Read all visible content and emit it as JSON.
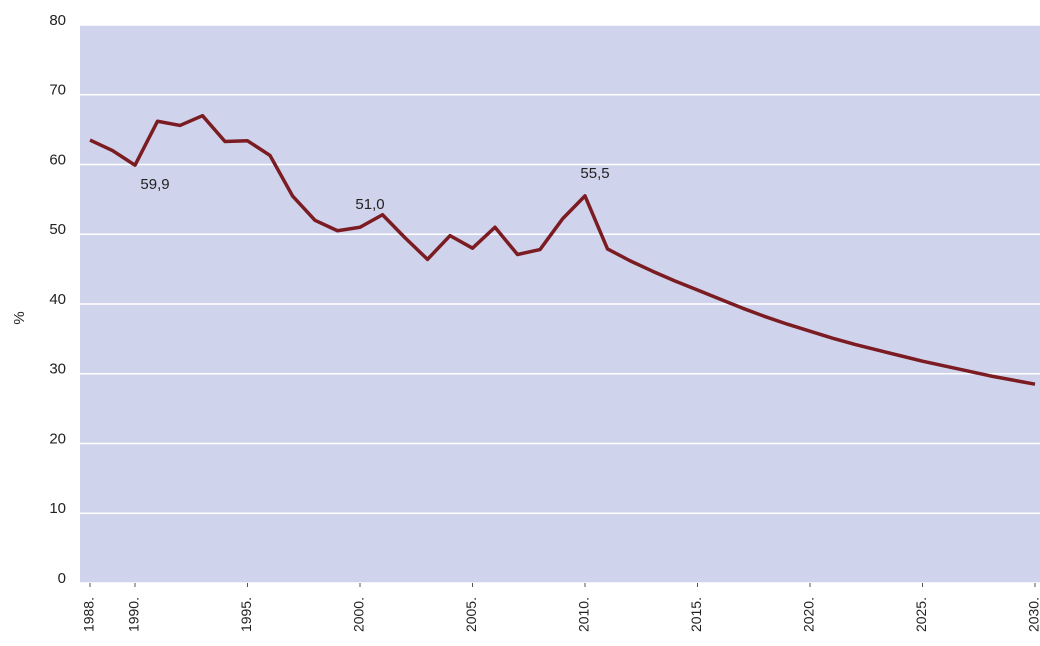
{
  "chart_data": {
    "type": "line",
    "y_label": "%",
    "x": [
      1988,
      1989,
      1990,
      1991,
      1992,
      1993,
      1994,
      1995,
      1996,
      1997,
      1998,
      1999,
      2000,
      2001,
      2002,
      2003,
      2004,
      2005,
      2006,
      2007,
      2008,
      2009,
      2010,
      2011,
      2012,
      2013,
      2014,
      2015,
      2016,
      2017,
      2018,
      2019,
      2020,
      2021,
      2022,
      2023,
      2024,
      2025,
      2026,
      2027,
      2028,
      2029,
      2030
    ],
    "values": [
      63.5,
      62.0,
      59.9,
      66.2,
      65.6,
      67.0,
      63.3,
      63.4,
      61.3,
      55.5,
      52.0,
      50.5,
      51.0,
      52.8,
      49.5,
      46.4,
      49.8,
      48.0,
      51.0,
      47.1,
      47.8,
      52.2,
      55.5,
      47.9,
      46.2,
      44.7,
      43.3,
      42.0,
      40.7,
      39.4,
      38.2,
      37.1,
      36.1,
      35.1,
      34.2,
      33.4,
      32.6,
      31.8,
      31.1,
      30.4,
      29.7,
      29.1,
      28.5
    ],
    "value_labels": [
      null,
      null,
      "59,9",
      null,
      null,
      null,
      null,
      null,
      null,
      null,
      null,
      null,
      "51,0",
      null,
      null,
      null,
      null,
      null,
      null,
      null,
      null,
      null,
      "55,5",
      null,
      null,
      null,
      null,
      null,
      null,
      null,
      null,
      null,
      null,
      null,
      null,
      null,
      null,
      null,
      null,
      null,
      null,
      null,
      null
    ],
    "color": "#7b1c22",
    "plot_color": "#d0d3ec",
    "xlim": [
      1988,
      2030
    ],
    "xticks": [
      {
        "value": 1988,
        "label": "1988."
      },
      {
        "value": 1990,
        "label": "1990."
      },
      {
        "value": 1995,
        "label": "1995."
      },
      {
        "value": 2000,
        "label": "2000."
      },
      {
        "value": 2005,
        "label": "2005."
      },
      {
        "value": 2010,
        "label": "2010."
      },
      {
        "value": 2015,
        "label": "2015."
      },
      {
        "value": 2020,
        "label": "2020."
      },
      {
        "value": 2025,
        "label": "2025."
      },
      {
        "value": 2030,
        "label": "2030."
      }
    ],
    "ylim": [
      0,
      80
    ],
    "yticks": [
      0,
      10,
      20,
      30,
      40,
      50,
      60,
      70,
      80
    ],
    "grid": true
  }
}
